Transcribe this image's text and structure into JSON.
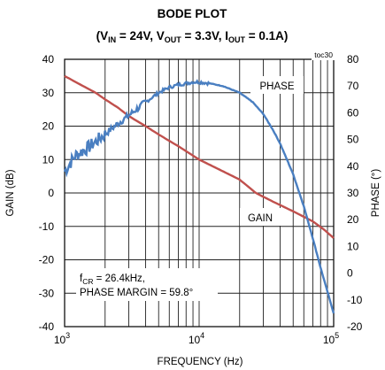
{
  "chart_data": {
    "type": "line",
    "title": "BODE PLOT",
    "subtitle_parts": {
      "vin_main": "V",
      "vin_sub": "IN",
      "vin_rest": " = 24V, ",
      "vout_main": "V",
      "vout_sub": "OUT",
      "vout_rest": " = 3.3V, ",
      "iout_main": "I",
      "iout_sub": "OUT",
      "iout_rest": " = 0.1A)",
      "open": "("
    },
    "figure_id": "toc30",
    "xlabel": "FREQUENCY (Hz)",
    "ylabel_left": "GAIN (dB)",
    "ylabel_right": "PHASE (°)",
    "x_scale": "log",
    "xlim": [
      1000,
      100000
    ],
    "x_ticks": [
      {
        "base": "10",
        "exp": "3"
      },
      {
        "base": "10",
        "exp": "4"
      },
      {
        "base": "10",
        "exp": "5"
      }
    ],
    "ylim_left": [
      -40,
      40
    ],
    "y_ticks_left": [
      "40",
      "30",
      "20",
      "10",
      "0",
      "-10",
      "-20",
      "-30",
      "-40"
    ],
    "ylim_right": [
      -20,
      80
    ],
    "y_ticks_right": [
      "80",
      "70",
      "60",
      "50",
      "40",
      "30",
      "20",
      "10",
      "0",
      "-10",
      "-20"
    ],
    "grid": true,
    "series": [
      {
        "name": "GAIN",
        "axis": "left",
        "color": "#c0504d",
        "x": [
          1000,
          1300,
          1700,
          2000,
          2500,
          3000,
          4000,
          5000,
          7000,
          10000,
          15000,
          20000,
          26400,
          35000,
          50000,
          70000,
          85000,
          100000
        ],
        "y": [
          35,
          32.5,
          30,
          28,
          25.5,
          23,
          20,
          17.5,
          14,
          10,
          6.5,
          4,
          0,
          -2.5,
          -5.5,
          -8.5,
          -11,
          -13.5
        ]
      },
      {
        "name": "PHASE",
        "axis": "right",
        "color": "#4a7fc1",
        "x": [
          1000,
          1200,
          1500,
          2000,
          2500,
          3000,
          4000,
          5000,
          6000,
          7000,
          8000,
          9000,
          10000,
          12000,
          15000,
          20000,
          25000,
          30000,
          35000,
          40000,
          50000,
          60000,
          70000,
          80000,
          90000,
          100000
        ],
        "y": [
          38,
          44,
          47,
          52,
          56,
          59,
          64,
          67.5,
          69.5,
          70.5,
          71,
          71.5,
          71.5,
          71,
          70,
          67.5,
          64,
          59.5,
          54,
          48.5,
          37,
          25,
          13,
          2,
          -7,
          -15
        ]
      }
    ],
    "series_labels": [
      {
        "text": "PHASE",
        "series": "PHASE"
      },
      {
        "text": "GAIN",
        "series": "GAIN"
      }
    ],
    "annotation": {
      "line1_main": "f",
      "line1_sub": "CR",
      "line1_rest": " = 26.4kHz,",
      "line2": "PHASE MARGIN = 59.8°"
    }
  }
}
